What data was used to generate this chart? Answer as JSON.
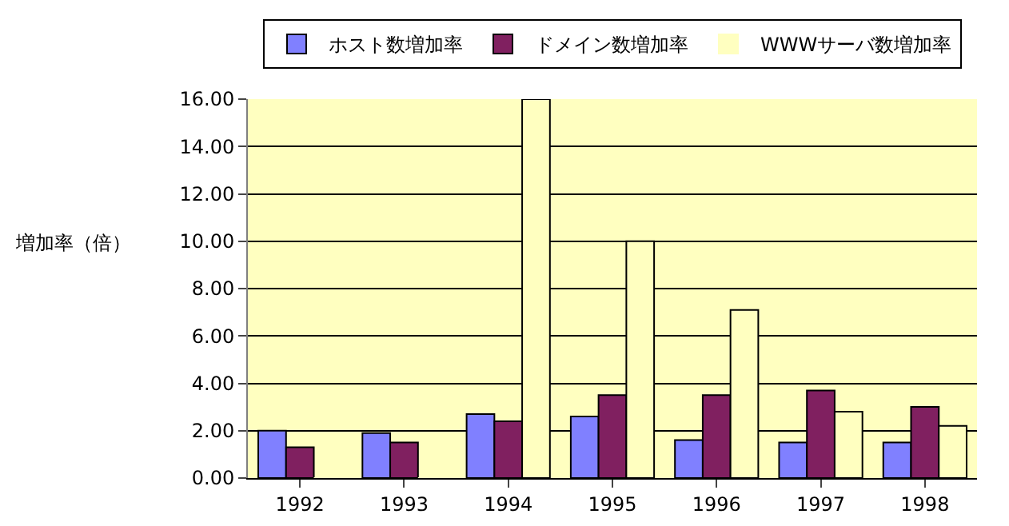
{
  "chart_data": {
    "type": "bar",
    "ylabel": "増加率（倍）",
    "categories": [
      "1992",
      "1993",
      "1994",
      "1995",
      "1996",
      "1997",
      "1998"
    ],
    "series": [
      {
        "name": "ホスト数増加率",
        "color": "#8080ff",
        "values": [
          2.0,
          1.9,
          2.7,
          2.6,
          1.6,
          1.5,
          1.5
        ]
      },
      {
        "name": "ドメイン数増加率",
        "color": "#802060",
        "values": [
          1.3,
          1.5,
          2.4,
          3.5,
          3.5,
          3.7,
          3.0
        ]
      },
      {
        "name": "WWWサーバ数増加率",
        "color": "#ffffc0",
        "values": [
          0,
          0,
          16.0,
          10.0,
          7.1,
          2.8,
          2.2
        ]
      }
    ],
    "ylim": [
      0,
      16
    ],
    "yticks": [
      {
        "value": 0,
        "label": "0.00"
      },
      {
        "value": 2,
        "label": "2.00"
      },
      {
        "value": 4,
        "label": "4.00"
      },
      {
        "value": 6,
        "label": "6.00"
      },
      {
        "value": 8,
        "label": "8.00"
      },
      {
        "value": 10,
        "label": "10.00"
      },
      {
        "value": 12,
        "label": "12.00"
      },
      {
        "value": 14,
        "label": "14.00"
      },
      {
        "value": 16,
        "label": "16.00"
      }
    ],
    "grid": true,
    "legend": "top"
  }
}
